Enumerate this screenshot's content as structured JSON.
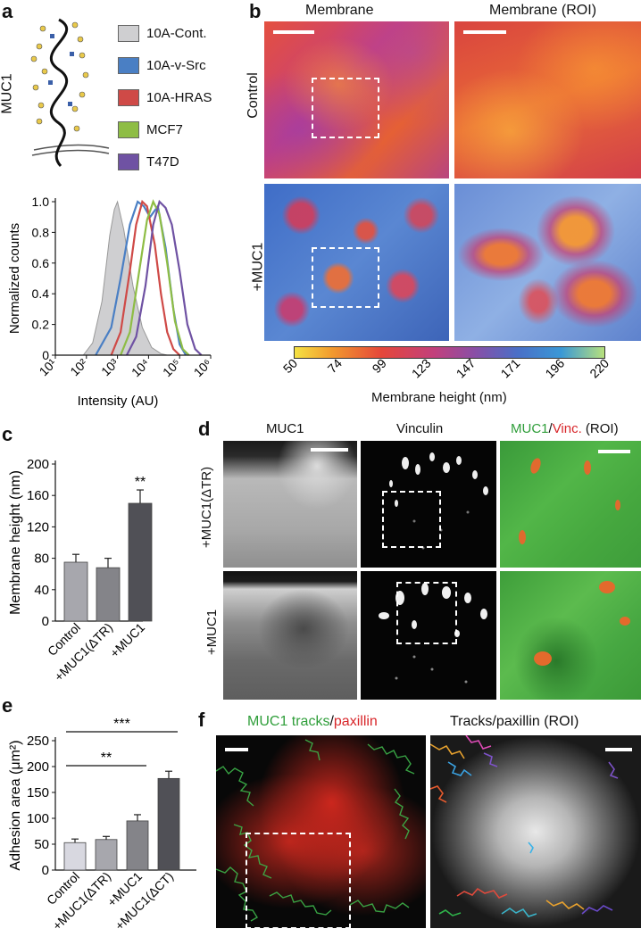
{
  "panels": {
    "a": {
      "label": "a",
      "muc1_label": "MUC1",
      "legend": [
        {
          "name": "10A-Cont.",
          "color": "#cfcfd1"
        },
        {
          "name": "10A-v-Src",
          "color": "#4a7fc4"
        },
        {
          "name": "10A-HRAS",
          "color": "#cf4a47"
        },
        {
          "name": "MCF7",
          "color": "#8ebd45"
        },
        {
          "name": "T47D",
          "color": "#6f52a3"
        }
      ]
    },
    "b": {
      "label": "b",
      "col_titles": [
        "Membrane",
        "Membrane (ROI)"
      ],
      "row_labels": [
        "Control",
        "+MUC1"
      ],
      "colorbar_ticks": [
        "50",
        "74",
        "99",
        "123",
        "147",
        "171",
        "196",
        "220"
      ],
      "colorbar_label": "Membrane height (nm)"
    },
    "c": {
      "label": "c"
    },
    "d": {
      "label": "d",
      "col_titles": [
        "MUC1",
        "Vinculin"
      ],
      "col3_muc1": "MUC1",
      "col3_slash": "/",
      "col3_vinc": "Vinc.",
      "col3_roi": " (ROI)",
      "row_labels": [
        "+MUC1(ΔTR)",
        "+MUC1"
      ]
    },
    "e": {
      "label": "e"
    },
    "f": {
      "label": "f",
      "title_green": "MUC1 tracks",
      "title_slash": "/",
      "title_red": "paxillin",
      "title_right": "Tracks/paxillin (ROI)"
    }
  },
  "chart_data": [
    {
      "panel": "a",
      "type": "line",
      "ylabel": "Normalized counts",
      "xlabel": "Intensity (AU)",
      "xscale": "log",
      "xlim": [
        1,
        6
      ],
      "ylim": [
        0,
        1.0
      ],
      "yticks": [
        "0",
        "0.2",
        "0.4",
        "0.6",
        "0.8",
        "1.0"
      ],
      "xticks": [
        "10¹",
        "10²",
        "10³",
        "10⁴",
        "10⁵",
        "10⁶"
      ],
      "series": [
        {
          "name": "10A-Cont.",
          "filled": true,
          "color": "#cfcfd1",
          "x": [
            1.9,
            2.2,
            2.5,
            2.75,
            2.9,
            3.0,
            3.2,
            3.5,
            3.8,
            4.1,
            4.4,
            4.6
          ],
          "y": [
            0.0,
            0.08,
            0.35,
            0.78,
            0.95,
            1.0,
            0.82,
            0.45,
            0.18,
            0.05,
            0.01,
            0.0
          ]
        },
        {
          "name": "10A-v-Src",
          "filled": false,
          "color": "#4a7fc4",
          "x": [
            2.3,
            2.8,
            3.1,
            3.4,
            3.65,
            3.85,
            4.05,
            4.3,
            4.55,
            4.8,
            5.0,
            5.2
          ],
          "y": [
            0.0,
            0.18,
            0.5,
            0.85,
            1.0,
            0.97,
            0.9,
            0.97,
            0.7,
            0.3,
            0.07,
            0.0
          ]
        },
        {
          "name": "10A-HRAS",
          "filled": false,
          "color": "#cf4a47",
          "x": [
            2.8,
            3.1,
            3.4,
            3.6,
            3.8,
            3.95,
            4.2,
            4.4,
            4.6,
            4.8,
            5.0
          ],
          "y": [
            0.0,
            0.15,
            0.55,
            0.85,
            1.0,
            0.97,
            0.72,
            0.4,
            0.15,
            0.04,
            0.0
          ]
        },
        {
          "name": "MCF7",
          "filled": false,
          "color": "#8ebd45",
          "x": [
            3.1,
            3.4,
            3.7,
            3.95,
            4.15,
            4.35,
            4.6,
            4.85,
            5.1,
            5.3
          ],
          "y": [
            0.0,
            0.15,
            0.55,
            0.88,
            1.0,
            0.92,
            0.6,
            0.22,
            0.04,
            0.0
          ]
        },
        {
          "name": "T47D",
          "filled": false,
          "color": "#6f52a3",
          "x": [
            3.3,
            3.6,
            3.9,
            4.15,
            4.35,
            4.55,
            4.75,
            5.0,
            5.25,
            5.5,
            5.7
          ],
          "y": [
            0.0,
            0.12,
            0.45,
            0.85,
            1.0,
            0.96,
            0.85,
            0.55,
            0.2,
            0.04,
            0.0
          ]
        }
      ]
    },
    {
      "panel": "c",
      "type": "bar",
      "ylabel": "Membrane height (nm)",
      "ylim": [
        0,
        200
      ],
      "yticks": [
        "0",
        "40",
        "80",
        "120",
        "160",
        "200"
      ],
      "categories": [
        "Control",
        "+MUC1(ΔTR)",
        "+MUC1"
      ],
      "values": [
        75,
        68,
        150
      ],
      "errors": [
        10,
        12,
        17
      ],
      "colors": [
        "#a7a7ad",
        "#848489",
        "#505056"
      ],
      "significance": [
        {
          "bar": 2,
          "text": "**"
        }
      ]
    },
    {
      "panel": "e",
      "type": "bar",
      "ylabel": "Adhesion area (μm²)",
      "ylim": [
        0,
        250
      ],
      "yticks": [
        "0",
        "50",
        "100",
        "150",
        "200",
        "250"
      ],
      "categories": [
        "Control",
        "+MUC1(ΔTR)",
        "+MUC1",
        "+MUC1(ΔCT)"
      ],
      "values": [
        53,
        59,
        95,
        177
      ],
      "errors": [
        7,
        6,
        12,
        14
      ],
      "colors": [
        "#d8d8e0",
        "#a7a7ad",
        "#848489",
        "#505056"
      ],
      "brackets": [
        {
          "from": 0,
          "to": 2,
          "text": "**"
        },
        {
          "from": 0,
          "to": 3,
          "text": "***"
        }
      ]
    }
  ]
}
